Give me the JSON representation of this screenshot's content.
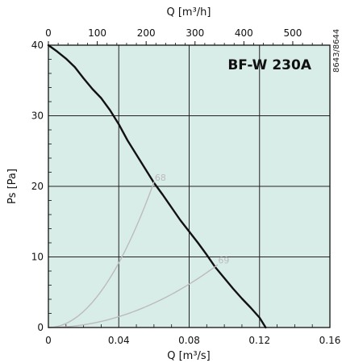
{
  "chart_data": {
    "type": "line",
    "title": "BF-W 230A",
    "side_note": "8643/8644",
    "xlabel": "Q [m³/s]",
    "x2label": "Q [m³/h]",
    "ylabel": "Ps [Pa]",
    "xlim": [
      0,
      0.16
    ],
    "ylim": [
      0,
      40
    ],
    "x2lim": [
      0,
      576
    ],
    "x_ticks": [
      "0",
      "0.04",
      "0.08",
      "0.12",
      "0.16"
    ],
    "x2_ticks": [
      "0",
      "100",
      "200",
      "300",
      "400",
      "500"
    ],
    "y_ticks": [
      "0",
      "10",
      "20",
      "30",
      "40"
    ],
    "grid": true,
    "series": [
      {
        "kind": "fan_curve",
        "color": "#111111",
        "points": [
          [
            0,
            40
          ],
          [
            0.005,
            39.1
          ],
          [
            0.01,
            38.1
          ],
          [
            0.015,
            36.9
          ],
          [
            0.02,
            35.3
          ],
          [
            0.025,
            33.8
          ],
          [
            0.03,
            32.5
          ],
          [
            0.035,
            30.8
          ],
          [
            0.04,
            28.8
          ],
          [
            0.045,
            26.5
          ],
          [
            0.05,
            24.5
          ],
          [
            0.055,
            22.5
          ],
          [
            0.06,
            20.5
          ],
          [
            0.065,
            18.8
          ],
          [
            0.07,
            17
          ],
          [
            0.075,
            15.2
          ],
          [
            0.08,
            13.6
          ],
          [
            0.085,
            12
          ],
          [
            0.09,
            10.3
          ],
          [
            0.095,
            8.5
          ],
          [
            0.1,
            7
          ],
          [
            0.105,
            5.5
          ],
          [
            0.11,
            4.1
          ],
          [
            0.115,
            2.8
          ],
          [
            0.12,
            1.4
          ],
          [
            0.1235,
            0
          ]
        ]
      },
      {
        "kind": "system_curve",
        "name": "68",
        "color": "#bbbbbb",
        "k": 5722,
        "points": [
          [
            0,
            0
          ],
          [
            0.06,
            20.6
          ]
        ]
      },
      {
        "kind": "system_curve",
        "name": "69",
        "color": "#bbbbbb",
        "k": 960,
        "points": [
          [
            0,
            0
          ],
          [
            0.096,
            8.85
          ]
        ]
      }
    ],
    "colors": {
      "plot_background": "#d9ede8",
      "grid": "#222222",
      "axis": "#111111"
    }
  }
}
